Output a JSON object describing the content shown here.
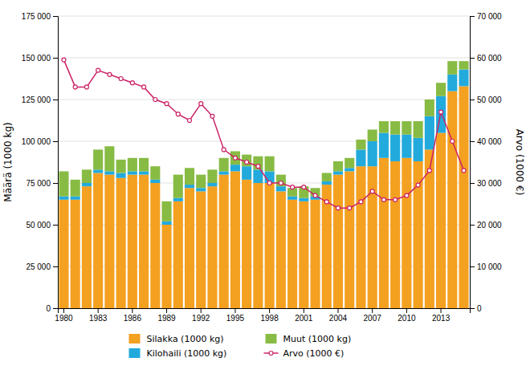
{
  "chart_data": {
    "type": "bar",
    "stacked": true,
    "grid": true,
    "legend": "bottom",
    "y_label": "Määrä (1000 kg)",
    "y2_label": "Arvo (1000 €)",
    "categories": [
      "1980",
      null,
      null,
      "1983",
      null,
      null,
      "1986",
      null,
      null,
      "1989",
      null,
      null,
      "1992",
      null,
      null,
      "1995",
      null,
      null,
      "1998",
      null,
      null,
      "2001",
      null,
      null,
      "2004",
      null,
      null,
      "2007",
      null,
      null,
      "2010",
      null,
      null,
      "2013",
      null,
      null
    ],
    "ylim": [
      0,
      175000
    ],
    "yticks": [
      0,
      {
        "value": 25000,
        "label": "25 000"
      },
      {
        "value": 50000,
        "label": "50 000"
      },
      {
        "value": 75000,
        "label": "75 000"
      },
      {
        "value": 100000,
        "label": "100 000"
      },
      {
        "value": 125000,
        "label": "125 000"
      },
      {
        "value": 150000,
        "label": "150 000"
      },
      {
        "value": 175000,
        "label": "175 000"
      }
    ],
    "y2lim": [
      0,
      70000
    ],
    "y2ticks": [
      0,
      {
        "value": 10000,
        "label": "10 000"
      },
      {
        "value": 20000,
        "label": "20 000"
      },
      {
        "value": 30000,
        "label": "30 000"
      },
      {
        "value": 40000,
        "label": "40 000"
      },
      {
        "value": 50000,
        "label": "50 000"
      },
      {
        "value": 60000,
        "label": "60 000"
      },
      {
        "value": 70000,
        "label": "70 000"
      }
    ],
    "series": [
      {
        "name": "Silakka (1000 kg)",
        "type": "bar",
        "color": "#F4A020",
        "values": [
          65000,
          65000,
          73000,
          81000,
          80000,
          78000,
          80000,
          80000,
          75000,
          50000,
          64000,
          72000,
          70000,
          73000,
          80000,
          82000,
          77000,
          75000,
          75000,
          70000,
          65000,
          64000,
          65000,
          74000,
          80000,
          82000,
          85000,
          85000,
          90000,
          88000,
          90000,
          88000,
          95000,
          105000,
          130000,
          133000
        ]
      },
      {
        "name": "Kilohaili (1000 kg)",
        "type": "bar",
        "color": "#22AADD",
        "values": [
          2000,
          2000,
          2000,
          2000,
          2000,
          3000,
          2000,
          2000,
          2000,
          2000,
          2000,
          2000,
          2000,
          2000,
          2000,
          4000,
          8000,
          8000,
          7000,
          3000,
          2000,
          2000,
          2000,
          2000,
          2000,
          2000,
          10000,
          15000,
          15000,
          16000,
          14000,
          14000,
          20000,
          22000,
          10000,
          10000
        ]
      },
      {
        "name": "Muut (1000 kg)",
        "type": "bar",
        "color": "#88BB44",
        "values": [
          15000,
          10000,
          8000,
          12000,
          15000,
          8000,
          8000,
          8000,
          8000,
          12000,
          14000,
          10000,
          8000,
          8000,
          8000,
          8000,
          7000,
          8000,
          9000,
          7000,
          5000,
          7000,
          5000,
          5000,
          6000,
          6000,
          6000,
          7000,
          7000,
          8000,
          8000,
          10000,
          10000,
          8000,
          8000,
          5000
        ]
      },
      {
        "name": "Arvo (1000 €)",
        "type": "line",
        "axis": "y2",
        "color": "#CC2266",
        "marker": "circle",
        "line_style": "solid",
        "values": [
          59500,
          53000,
          53000,
          57000,
          56000,
          55000,
          54000,
          53000,
          50000,
          49000,
          46500,
          45000,
          49000,
          46000,
          38000,
          36000,
          35000,
          34000,
          30000,
          30000,
          29000,
          29000,
          27000,
          25500,
          24000,
          24000,
          25500,
          28000,
          26000,
          26000,
          27000,
          29500,
          33000,
          47000,
          40000,
          33000
        ]
      }
    ]
  }
}
